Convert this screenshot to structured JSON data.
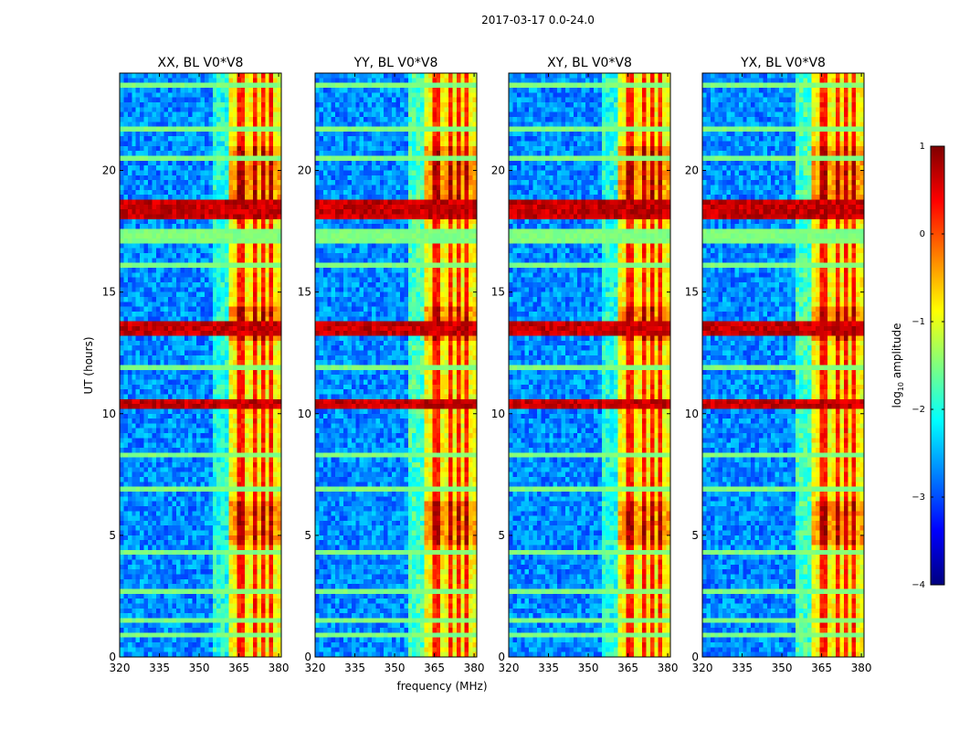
{
  "figure_title": "2017-03-17 0.0-24.0",
  "chart_data": {
    "type": "heatmap",
    "title": "2017-03-17 0.0-24.0",
    "xlabel": "frequency (MHz)",
    "ylabel": "UT (hours)",
    "xlim": [
      320,
      381
    ],
    "ylim": [
      0,
      24
    ],
    "xticks": [
      320,
      335,
      350,
      365,
      380
    ],
    "yticks": [
      0,
      5,
      10,
      15,
      20
    ],
    "colormap": "jet",
    "colorbar": {
      "label_prefix": "log",
      "label_sub": "10",
      "label_suffix": " amplitude",
      "range": [
        -4,
        1
      ],
      "ticks": [
        -4,
        -3,
        -2,
        -1,
        0,
        1
      ],
      "ticks_text": [
        "−4",
        "−3",
        "−2",
        "−1",
        "0",
        "1"
      ]
    },
    "panels": [
      {
        "title": "XX, BL V0*V8",
        "pol": "XX"
      },
      {
        "title": "YY, BL V0*V8",
        "pol": "YY"
      },
      {
        "title": "XY, BL V0*V8",
        "pol": "XY"
      },
      {
        "title": "YX, BL V0*V8",
        "pol": "YX"
      }
    ],
    "features": {
      "rfi_band_mhz": [
        361,
        381
      ],
      "rfi_channels_mhz": [
        364.5,
        367,
        370.5,
        374,
        377.5
      ],
      "strong_bands_ut": [
        [
          18.0,
          18.8
        ],
        [
          13.2,
          13.8
        ],
        [
          10.3,
          10.5
        ]
      ],
      "flagged_rows_ut": [
        [
          17.1,
          17.6
        ],
        [
          23.5,
          23.6
        ],
        [
          21.6,
          21.7
        ],
        [
          20.5,
          20.6
        ],
        [
          16.0,
          16.1
        ],
        [
          11.8,
          11.9
        ],
        [
          8.2,
          8.3
        ],
        [
          6.8,
          6.9
        ],
        [
          4.3,
          4.4
        ],
        [
          2.6,
          2.7
        ],
        [
          1.4,
          1.5
        ],
        [
          0.8,
          0.9
        ],
        [
          0.2,
          0.3
        ]
      ]
    }
  }
}
